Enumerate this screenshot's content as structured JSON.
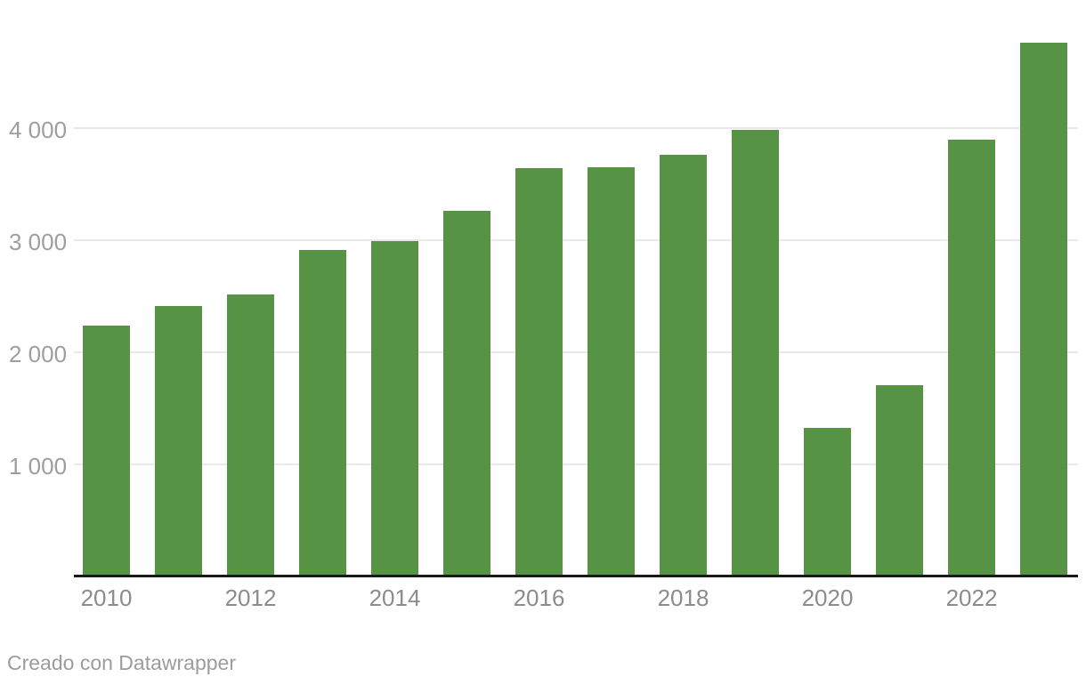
{
  "chart_data": {
    "type": "bar",
    "title": "",
    "xlabel": "",
    "ylabel": "",
    "categories": [
      "2010",
      "2011",
      "2012",
      "2013",
      "2014",
      "2015",
      "2016",
      "2017",
      "2018",
      "2019",
      "2020",
      "2021",
      "2022",
      "2023"
    ],
    "values": [
      2240,
      2415,
      2520,
      2915,
      2990,
      3260,
      3645,
      3655,
      3760,
      3985,
      1325,
      1710,
      3900,
      4760
    ],
    "ylim": [
      0,
      4800
    ],
    "yticks": [
      {
        "value": 1000,
        "label": "1 000"
      },
      {
        "value": 2000,
        "label": "2 000"
      },
      {
        "value": 3000,
        "label": "3 000"
      },
      {
        "value": 4000,
        "label": "4 000"
      }
    ],
    "xtick_labels": [
      "2010",
      "2012",
      "2014",
      "2016",
      "2018",
      "2020",
      "2022"
    ],
    "grid": "horizontal-only",
    "legend": "none",
    "bar_color": "#569345"
  },
  "footer": {
    "credit": "Creado con Datawrapper"
  },
  "colors": {
    "bar": "#569345",
    "gridline": "#e9e9e9",
    "axis_line": "#191919",
    "y_tick_label": "#9e9e9e",
    "x_tick_label": "#8c8c8c",
    "footer_text": "#9c9c9c",
    "background": "#ffffff"
  }
}
